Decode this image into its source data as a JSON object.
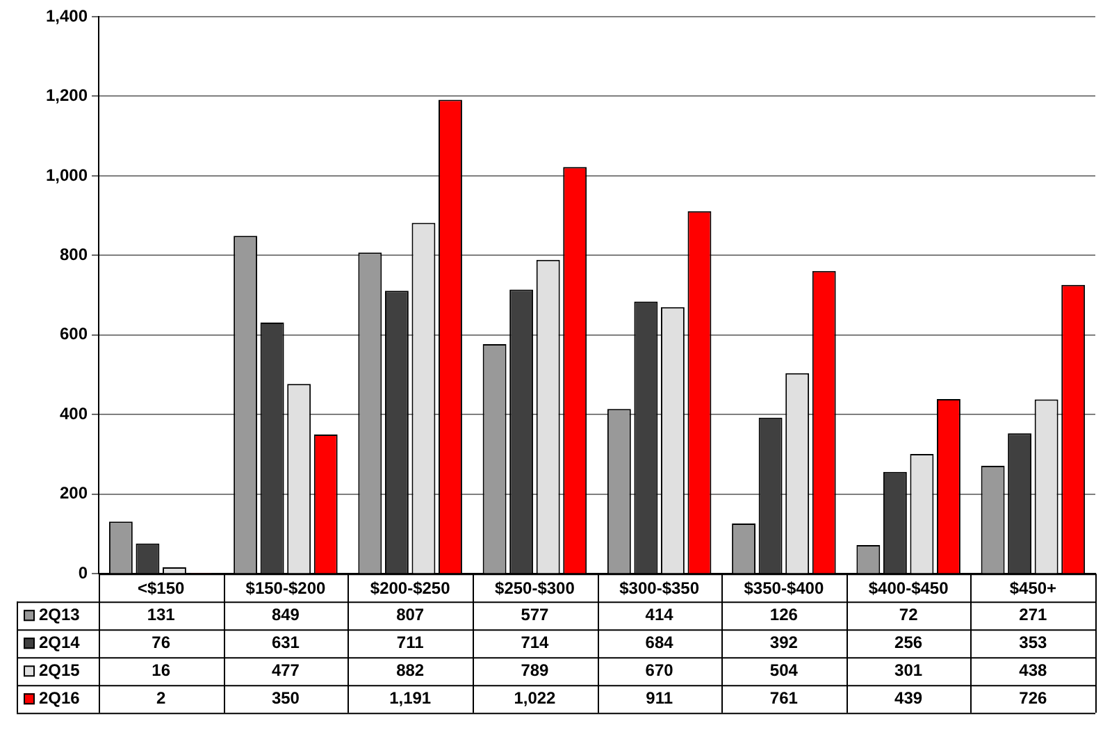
{
  "chart_data": {
    "type": "bar",
    "categories": [
      "<$150",
      "$150-$200",
      "$200-$250",
      "$250-$300",
      "$300-$350",
      "$350-$400",
      "$400-$450",
      "$450+"
    ],
    "series": [
      {
        "name": "2Q13",
        "color": "#999999",
        "values": [
          131,
          849,
          807,
          577,
          414,
          126,
          72,
          271
        ],
        "value_labels": [
          "131",
          "849",
          "807",
          "577",
          "414",
          "126",
          "72",
          "271"
        ]
      },
      {
        "name": "2Q14",
        "color": "#404040",
        "values": [
          76,
          631,
          711,
          714,
          684,
          392,
          256,
          353
        ],
        "value_labels": [
          "76",
          "631",
          "711",
          "714",
          "684",
          "392",
          "256",
          "353"
        ]
      },
      {
        "name": "2Q15",
        "color": "#e0e0e0",
        "values": [
          16,
          477,
          882,
          789,
          670,
          504,
          301,
          438
        ],
        "value_labels": [
          "16",
          "477",
          "882",
          "789",
          "670",
          "504",
          "301",
          "438"
        ]
      },
      {
        "name": "2Q16",
        "color": "#ff0000",
        "values": [
          2,
          350,
          1191,
          1022,
          911,
          761,
          439,
          726
        ],
        "value_labels": [
          "2",
          "350",
          "1,191",
          "1,022",
          "911",
          "761",
          "439",
          "726"
        ]
      }
    ],
    "ylim": [
      0,
      1400
    ],
    "yticks": [
      0,
      {
        "value": 200,
        "label": "200"
      },
      {
        "value": 400,
        "label": "400"
      },
      {
        "value": 600,
        "label": "600"
      },
      {
        "value": 800,
        "label": "800"
      },
      {
        "value": 1000,
        "label": "1,000"
      },
      {
        "value": 1200,
        "label": "1,200"
      },
      {
        "value": 1400,
        "label": "1,400"
      }
    ],
    "grid": "y",
    "legend": "bottom"
  }
}
